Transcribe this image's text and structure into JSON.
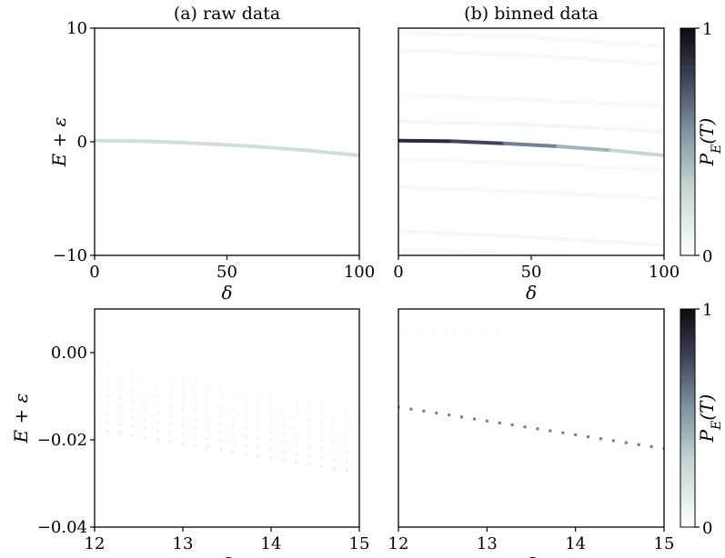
{
  "chart_data": [
    {
      "id": "a",
      "type": "heatmap",
      "title": "(a) raw data",
      "xlabel": "δ",
      "ylabel": "E + ε",
      "xlim": [
        0,
        100
      ],
      "ylim": [
        -10,
        10
      ],
      "xticks": [
        0,
        50,
        100
      ],
      "yticks": [
        -10,
        0,
        10
      ],
      "grid": false,
      "curves": [
        {
          "x": [
            0,
            20,
            40,
            60,
            80,
            100
          ],
          "y": [
            0.1,
            0.05,
            -0.15,
            -0.4,
            -0.75,
            -1.2
          ],
          "intensity": 0.25,
          "kind": "line"
        }
      ]
    },
    {
      "id": "b",
      "type": "heatmap",
      "title": "(b) binned data",
      "xlabel": "δ",
      "ylabel": "",
      "xlim": [
        0,
        100
      ],
      "ylim": [
        -10,
        10
      ],
      "xticks": [
        0,
        50,
        100
      ],
      "yticks": [],
      "grid": false,
      "colorbar": {
        "label": "P_E(T)",
        "ticks": [
          0,
          1
        ]
      },
      "curves": [
        {
          "x": [
            0,
            20,
            40,
            60,
            80,
            100
          ],
          "y": [
            0.1,
            0.05,
            -0.15,
            -0.4,
            -0.75,
            -1.2
          ],
          "intensity": [
            0.9,
            0.85,
            0.7,
            0.5,
            0.35,
            0.25
          ],
          "kind": "line"
        },
        {
          "x": [
            0,
            50,
            100
          ],
          "y": [
            9.6,
            9.2,
            8.4
          ],
          "intensity": 0.04,
          "kind": "line"
        },
        {
          "x": [
            0,
            50,
            100
          ],
          "y": [
            8.1,
            7.6,
            6.8
          ],
          "intensity": 0.04,
          "kind": "line"
        },
        {
          "x": [
            0,
            50,
            100
          ],
          "y": [
            4.1,
            3.7,
            3.1
          ],
          "intensity": 0.04,
          "kind": "line"
        },
        {
          "x": [
            0,
            50,
            100
          ],
          "y": [
            1.8,
            1.5,
            0.9
          ],
          "intensity": 0.06,
          "kind": "line"
        },
        {
          "x": [
            0,
            50,
            100
          ],
          "y": [
            -1.5,
            -1.9,
            -2.5
          ],
          "intensity": 0.04,
          "kind": "line"
        },
        {
          "x": [
            0,
            50,
            100
          ],
          "y": [
            -4.0,
            -4.4,
            -5.0
          ],
          "intensity": 0.04,
          "kind": "line"
        },
        {
          "x": [
            0,
            50,
            100
          ],
          "y": [
            -7.9,
            -8.4,
            -9.1
          ],
          "intensity": 0.05,
          "kind": "line"
        },
        {
          "x": [
            0,
            50,
            100
          ],
          "y": [
            -9.5,
            -9.9,
            -10.4
          ],
          "intensity": 0.04,
          "kind": "line"
        }
      ]
    },
    {
      "id": "c",
      "type": "heatmap",
      "title": "",
      "xlabel": "δ",
      "ylabel": "E + ε",
      "xlim": [
        12,
        15
      ],
      "ylim": [
        -0.04,
        0.01
      ],
      "xticks": [
        12,
        13,
        14,
        15
      ],
      "yticks": [
        -0.04,
        -0.02,
        0.0
      ],
      "ytick_labels": [
        "−0.04",
        "−0.02",
        "0.00"
      ],
      "grid": false,
      "curves": [
        {
          "x": [
            12,
            15
          ],
          "y": [
            -0.0035,
            -0.0135
          ],
          "intensity": 0.03,
          "kind": "dots",
          "n": 22
        },
        {
          "x": [
            12,
            15
          ],
          "y": [
            -0.0055,
            -0.0155
          ],
          "intensity": 0.04,
          "kind": "dots",
          "n": 22
        },
        {
          "x": [
            12,
            15
          ],
          "y": [
            -0.0075,
            -0.0175
          ],
          "intensity": 0.05,
          "kind": "dots",
          "n": 22
        },
        {
          "x": [
            12,
            15
          ],
          "y": [
            -0.0095,
            -0.0195
          ],
          "intensity": 0.06,
          "kind": "dots",
          "n": 22
        },
        {
          "x": [
            12,
            15
          ],
          "y": [
            -0.0115,
            -0.0215
          ],
          "intensity": 0.07,
          "kind": "dots",
          "n": 22
        },
        {
          "x": [
            12,
            15
          ],
          "y": [
            -0.0135,
            -0.0235
          ],
          "intensity": 0.08,
          "kind": "dots",
          "n": 22
        },
        {
          "x": [
            12,
            15
          ],
          "y": [
            -0.0155,
            -0.0255
          ],
          "intensity": 0.09,
          "kind": "dots",
          "n": 22
        },
        {
          "x": [
            12,
            15
          ],
          "y": [
            -0.0175,
            -0.0275
          ],
          "intensity": 0.11,
          "kind": "dots",
          "n": 22
        }
      ]
    },
    {
      "id": "d",
      "type": "heatmap",
      "title": "",
      "xlabel": "δ",
      "ylabel": "",
      "xlim": [
        12,
        15
      ],
      "ylim": [
        -0.04,
        0.01
      ],
      "xticks": [
        12,
        13,
        14,
        15
      ],
      "yticks": [],
      "grid": false,
      "colorbar": {
        "label": "P_E(T)",
        "ticks": [
          0,
          1
        ]
      },
      "curves": [
        {
          "x": [
            12,
            15
          ],
          "y": [
            -0.0125,
            -0.022
          ],
          "intensity": 0.6,
          "kind": "dots",
          "n": 22
        },
        {
          "x": [
            12.1,
            13.1
          ],
          "y": [
            0.0045,
            0.0045
          ],
          "intensity": 0.03,
          "kind": "dots",
          "n": 8
        }
      ]
    }
  ]
}
